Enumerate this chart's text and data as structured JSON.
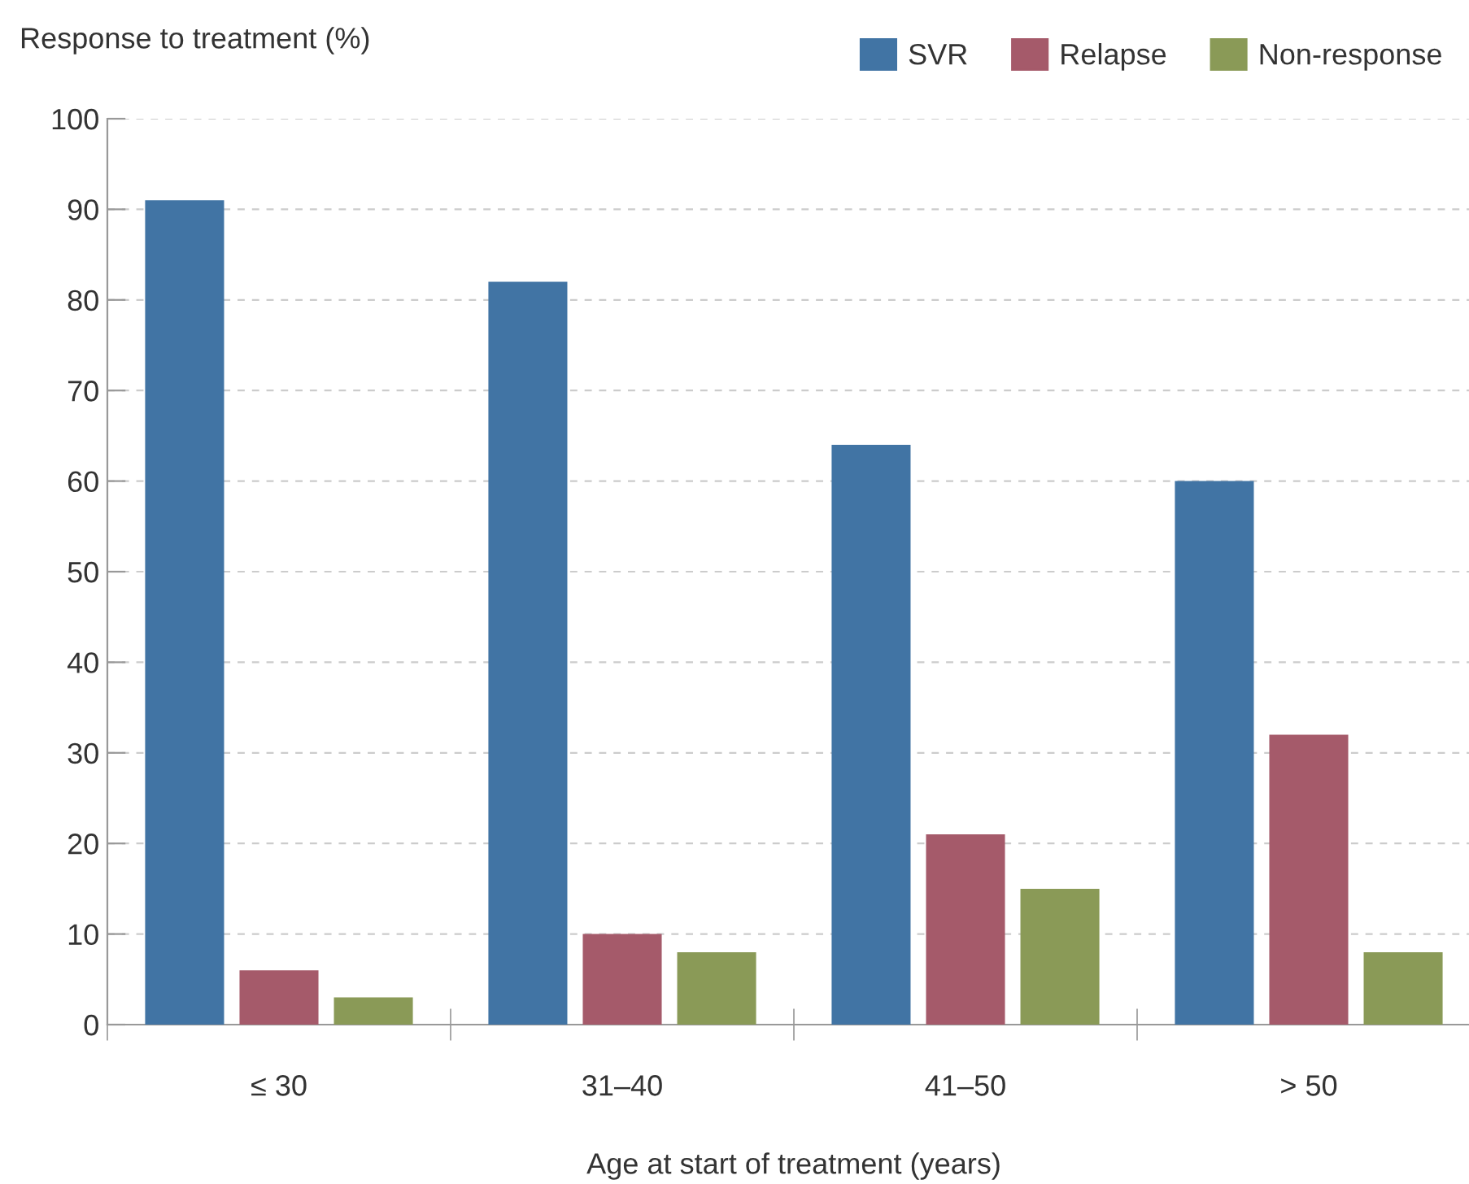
{
  "chart_data": {
    "type": "bar",
    "ylabel": "Response to treatment (%)",
    "xlabel": "Age at start of treatment (years)",
    "categories": [
      "≤ 30",
      "31–40",
      "41–50",
      "> 50"
    ],
    "series": [
      {
        "name": "SVR",
        "color": "#4174a4",
        "values": [
          91,
          82,
          64,
          60
        ]
      },
      {
        "name": "Relapse",
        "color": "#a55a6a",
        "values": [
          6,
          10,
          21,
          32
        ]
      },
      {
        "name": "Non-response",
        "color": "#8a9a57",
        "values": [
          3,
          8,
          15,
          8
        ]
      }
    ],
    "ylim": [
      0,
      100
    ],
    "yticks": [
      0,
      10,
      20,
      30,
      40,
      50,
      60,
      70,
      80,
      90,
      100
    ],
    "grid": "y",
    "legend": "top right"
  }
}
